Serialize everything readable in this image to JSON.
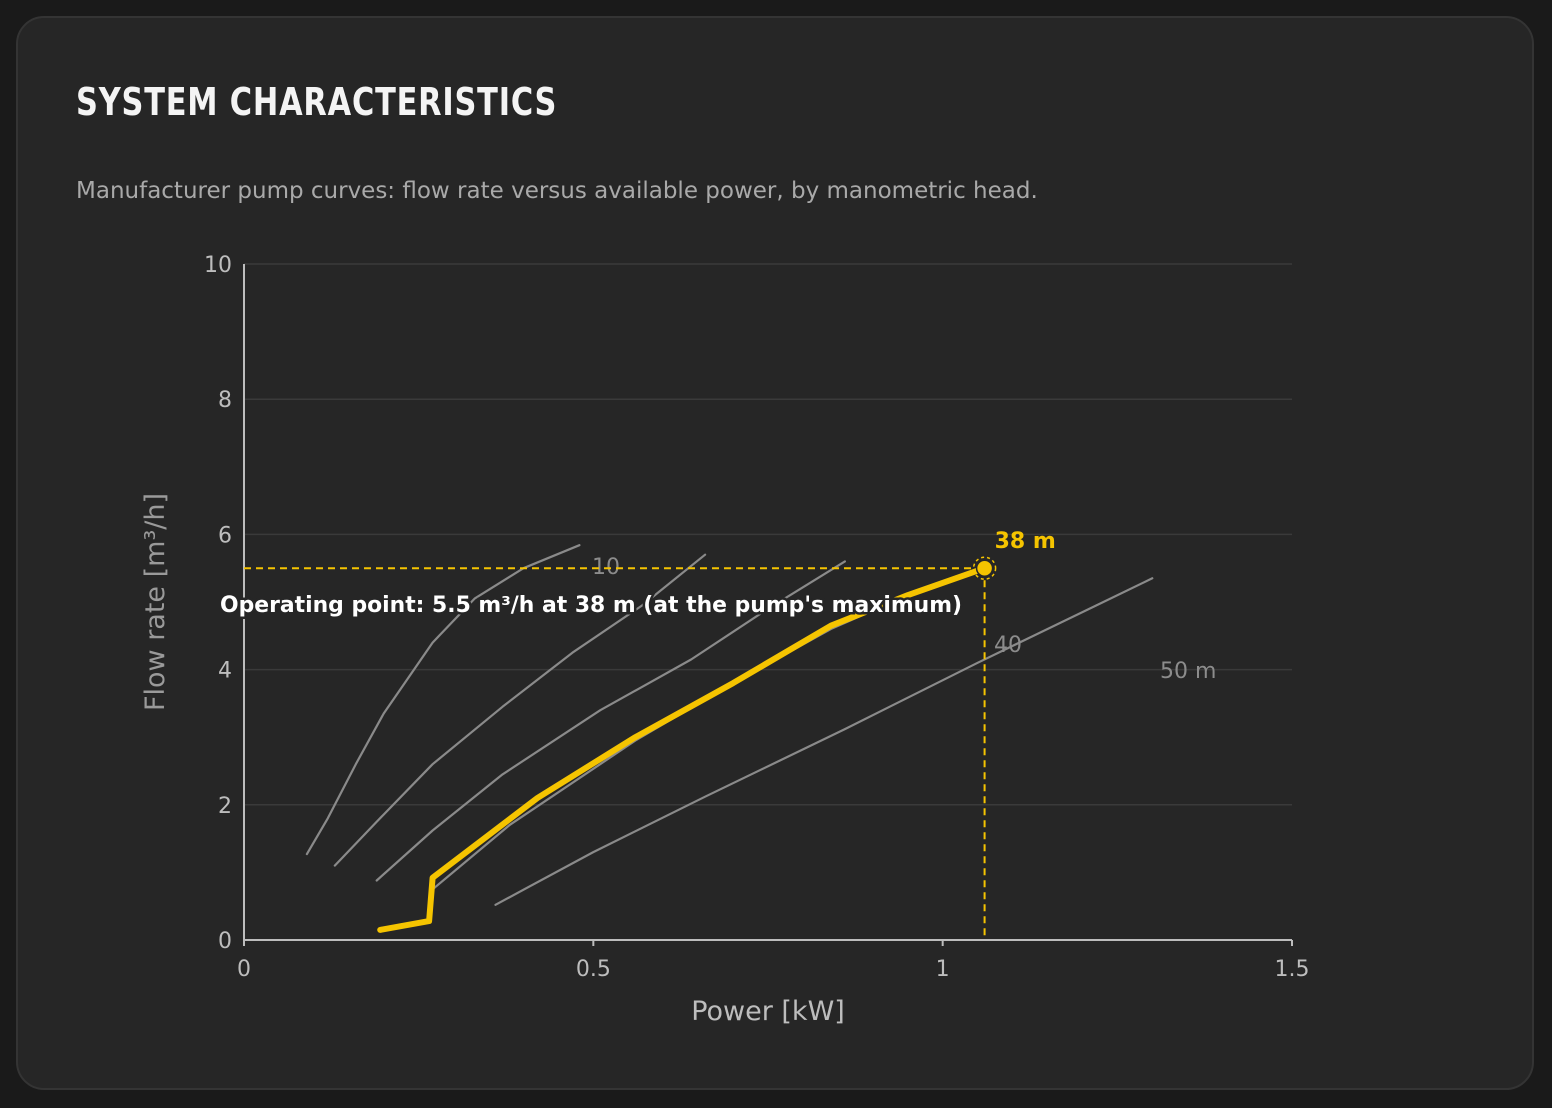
{
  "header": {
    "title": "SYSTEM CHARACTERISTICS",
    "subtitle": "Manufacturer pump curves: flow rate versus available power, by manometric head."
  },
  "colors": {
    "background": "#262626",
    "accent": "#f5c400",
    "curve": "#8a8a8a",
    "grid": "#3a3a3a",
    "axis": "#bdbdbd"
  },
  "chart_data": {
    "type": "line",
    "title": "",
    "xlabel": "Power [kW]",
    "ylabel": "Flow rate [m³/h]",
    "xlim": [
      0,
      1.5
    ],
    "ylim": [
      0,
      10
    ],
    "xticks": [
      0,
      0.5,
      1,
      1.5
    ],
    "xtick_labels": [
      "0",
      "0.5",
      "1",
      "1.5"
    ],
    "yticks": [
      0,
      2,
      4,
      6,
      8,
      10
    ],
    "ytick_labels": [
      "0",
      "2",
      "4",
      "6",
      "8",
      "10"
    ],
    "grid": "horizontal",
    "series": [
      {
        "name": "",
        "label": "10",
        "style": "reference",
        "points": [
          [
            0.09,
            1.27
          ],
          [
            0.12,
            1.8
          ],
          [
            0.16,
            2.6
          ],
          [
            0.2,
            3.35
          ],
          [
            0.27,
            4.4
          ],
          [
            0.33,
            5.05
          ],
          [
            0.4,
            5.5
          ],
          [
            0.48,
            5.84
          ]
        ]
      },
      {
        "name": "",
        "label": "",
        "style": "reference",
        "points": [
          [
            0.13,
            1.1
          ],
          [
            0.19,
            1.75
          ],
          [
            0.27,
            2.6
          ],
          [
            0.37,
            3.45
          ],
          [
            0.47,
            4.25
          ],
          [
            0.57,
            4.95
          ],
          [
            0.66,
            5.7
          ]
        ]
      },
      {
        "name": "",
        "label": "",
        "style": "reference",
        "points": [
          [
            0.19,
            0.88
          ],
          [
            0.27,
            1.62
          ],
          [
            0.37,
            2.45
          ],
          [
            0.51,
            3.4
          ],
          [
            0.64,
            4.15
          ],
          [
            0.75,
            4.9
          ],
          [
            0.86,
            5.6
          ]
        ]
      },
      {
        "name": "",
        "label": "40",
        "style": "reference",
        "points": [
          [
            0.27,
            0.75
          ],
          [
            0.38,
            1.7
          ],
          [
            0.56,
            2.95
          ],
          [
            0.7,
            3.8
          ],
          [
            0.84,
            4.6
          ],
          [
            0.95,
            5.1
          ],
          [
            1.05,
            5.45
          ]
        ]
      },
      {
        "name": "",
        "label": "50 m",
        "style": "reference",
        "points": [
          [
            0.36,
            0.52
          ],
          [
            0.5,
            1.3
          ],
          [
            0.66,
            2.12
          ],
          [
            0.86,
            3.12
          ],
          [
            1.05,
            4.1
          ],
          [
            1.22,
            4.95
          ],
          [
            1.3,
            5.35
          ]
        ]
      },
      {
        "name": "",
        "label": "",
        "style": "operating",
        "points": [
          [
            0.195,
            0.15
          ],
          [
            0.265,
            0.28
          ],
          [
            0.27,
            0.92
          ],
          [
            0.42,
            2.1
          ],
          [
            0.56,
            3.0
          ],
          [
            0.7,
            3.8
          ],
          [
            0.84,
            4.65
          ],
          [
            0.95,
            5.1
          ],
          [
            1.06,
            5.5
          ]
        ]
      }
    ],
    "operating_point": {
      "x": 1.06,
      "y": 5.5,
      "label": "38 m",
      "annotation": "Operating point: 5.5 m³/h at 38 m (at the pump's maximum)"
    }
  }
}
